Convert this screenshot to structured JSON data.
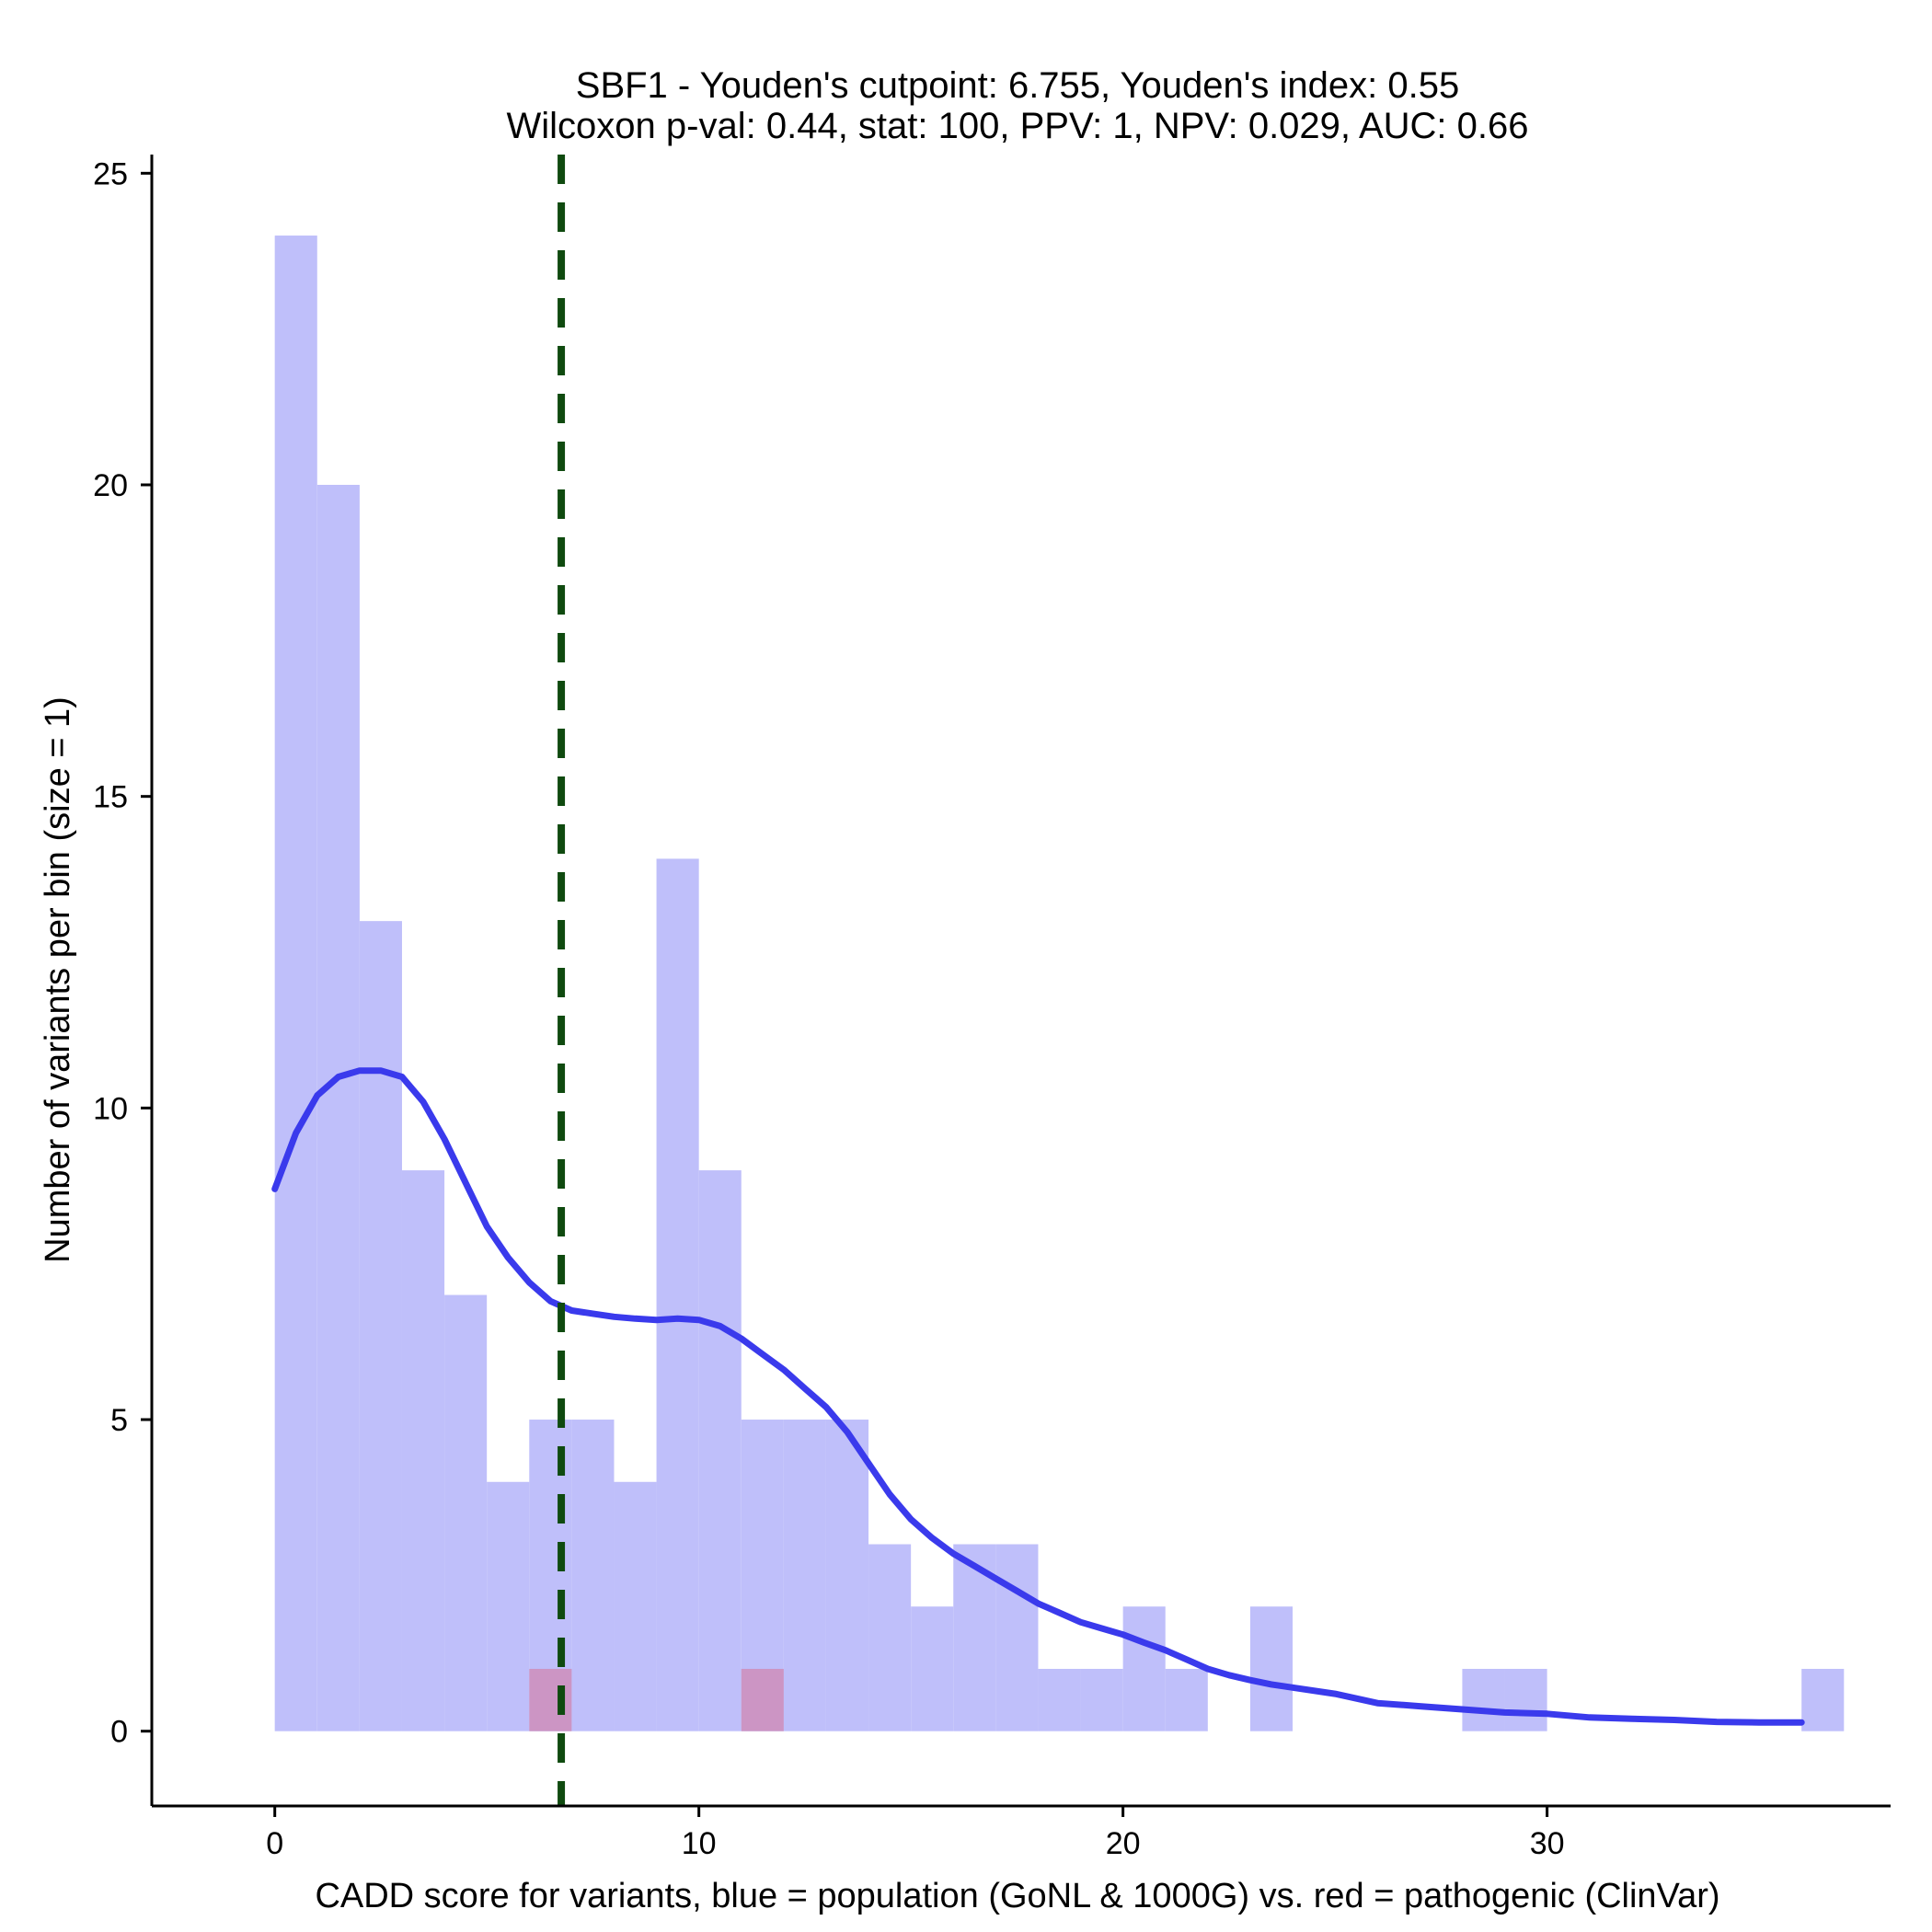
{
  "chart_data": {
    "type": "bar",
    "title": "SBF1 - Youden's cutpoint: 6.755, Youden's index: 0.55",
    "subtitle": "Wilcoxon p-val: 0.44, stat: 100, PPV: 1, NPV: 0.029, AUC: 0.66",
    "xlabel": "CADD score for variants, blue = population (GoNL & 1000G) vs. red = pathogenic (ClinVar)",
    "ylabel": "Number of variants per bin (size = 1)",
    "xlim": [
      -2.9,
      38.1
    ],
    "ylim": [
      -1.2,
      25.3
    ],
    "x_ticks": [
      0,
      10,
      20,
      30
    ],
    "y_ticks": [
      0,
      5,
      10,
      15,
      20,
      25
    ],
    "bin_width": 1,
    "grid": false,
    "colors": {
      "population": "#bfbffa",
      "pathogenic": "#cc95c4",
      "density": "#3a3aec",
      "cutpoint": "#0f4a0f"
    },
    "series": [
      {
        "name": "population",
        "bins": [
          {
            "x0": 0,
            "value": 24
          },
          {
            "x0": 1,
            "value": 20
          },
          {
            "x0": 2,
            "value": 13
          },
          {
            "x0": 3,
            "value": 9
          },
          {
            "x0": 4,
            "value": 7
          },
          {
            "x0": 5,
            "value": 4
          },
          {
            "x0": 6,
            "value": 5
          },
          {
            "x0": 7,
            "value": 5
          },
          {
            "x0": 8,
            "value": 4
          },
          {
            "x0": 9,
            "value": 14
          },
          {
            "x0": 10,
            "value": 9
          },
          {
            "x0": 11,
            "value": 5
          },
          {
            "x0": 12,
            "value": 5
          },
          {
            "x0": 13,
            "value": 5
          },
          {
            "x0": 14,
            "value": 3
          },
          {
            "x0": 15,
            "value": 2
          },
          {
            "x0": 16,
            "value": 3
          },
          {
            "x0": 17,
            "value": 3
          },
          {
            "x0": 18,
            "value": 1
          },
          {
            "x0": 19,
            "value": 1
          },
          {
            "x0": 20,
            "value": 2
          },
          {
            "x0": 21,
            "value": 1
          },
          {
            "x0": 23,
            "value": 2
          },
          {
            "x0": 28,
            "value": 1
          },
          {
            "x0": 29,
            "value": 1
          },
          {
            "x0": 36,
            "value": 1
          }
        ]
      },
      {
        "name": "pathogenic",
        "bins": [
          {
            "x0": 6,
            "value": 1
          },
          {
            "x0": 11,
            "value": 1
          }
        ]
      }
    ],
    "density_curve": [
      [
        0,
        8.7
      ],
      [
        0.5,
        9.6
      ],
      [
        1,
        10.2
      ],
      [
        1.5,
        10.5
      ],
      [
        2,
        10.6
      ],
      [
        2.5,
        10.6
      ],
      [
        3,
        10.5
      ],
      [
        3.5,
        10.1
      ],
      [
        4,
        9.5
      ],
      [
        4.5,
        8.8
      ],
      [
        5,
        8.1
      ],
      [
        5.5,
        7.6
      ],
      [
        6,
        7.2
      ],
      [
        6.5,
        6.9
      ],
      [
        7,
        6.75
      ],
      [
        7.5,
        6.7
      ],
      [
        8,
        6.65
      ],
      [
        8.5,
        6.62
      ],
      [
        9,
        6.6
      ],
      [
        9.5,
        6.62
      ],
      [
        10,
        6.6
      ],
      [
        10.5,
        6.5
      ],
      [
        11,
        6.3
      ],
      [
        11.5,
        6.05
      ],
      [
        12,
        5.8
      ],
      [
        12.5,
        5.5
      ],
      [
        13,
        5.2
      ],
      [
        13.5,
        4.8
      ],
      [
        14,
        4.3
      ],
      [
        14.5,
        3.8
      ],
      [
        15,
        3.4
      ],
      [
        15.5,
        3.1
      ],
      [
        16,
        2.85
      ],
      [
        16.5,
        2.65
      ],
      [
        17,
        2.45
      ],
      [
        17.5,
        2.25
      ],
      [
        18,
        2.05
      ],
      [
        18.5,
        1.9
      ],
      [
        19,
        1.75
      ],
      [
        19.5,
        1.65
      ],
      [
        20,
        1.55
      ],
      [
        20.5,
        1.42
      ],
      [
        21,
        1.3
      ],
      [
        21.5,
        1.15
      ],
      [
        22,
        1.0
      ],
      [
        22.5,
        0.9
      ],
      [
        23,
        0.82
      ],
      [
        23.5,
        0.75
      ],
      [
        24,
        0.7
      ],
      [
        25,
        0.6
      ],
      [
        26,
        0.45
      ],
      [
        27,
        0.4
      ],
      [
        28,
        0.35
      ],
      [
        29,
        0.3
      ],
      [
        30,
        0.28
      ],
      [
        31,
        0.22
      ],
      [
        32,
        0.2
      ],
      [
        33,
        0.18
      ],
      [
        34,
        0.15
      ],
      [
        35,
        0.14
      ],
      [
        36,
        0.14
      ]
    ],
    "cutpoint": 6.755
  }
}
